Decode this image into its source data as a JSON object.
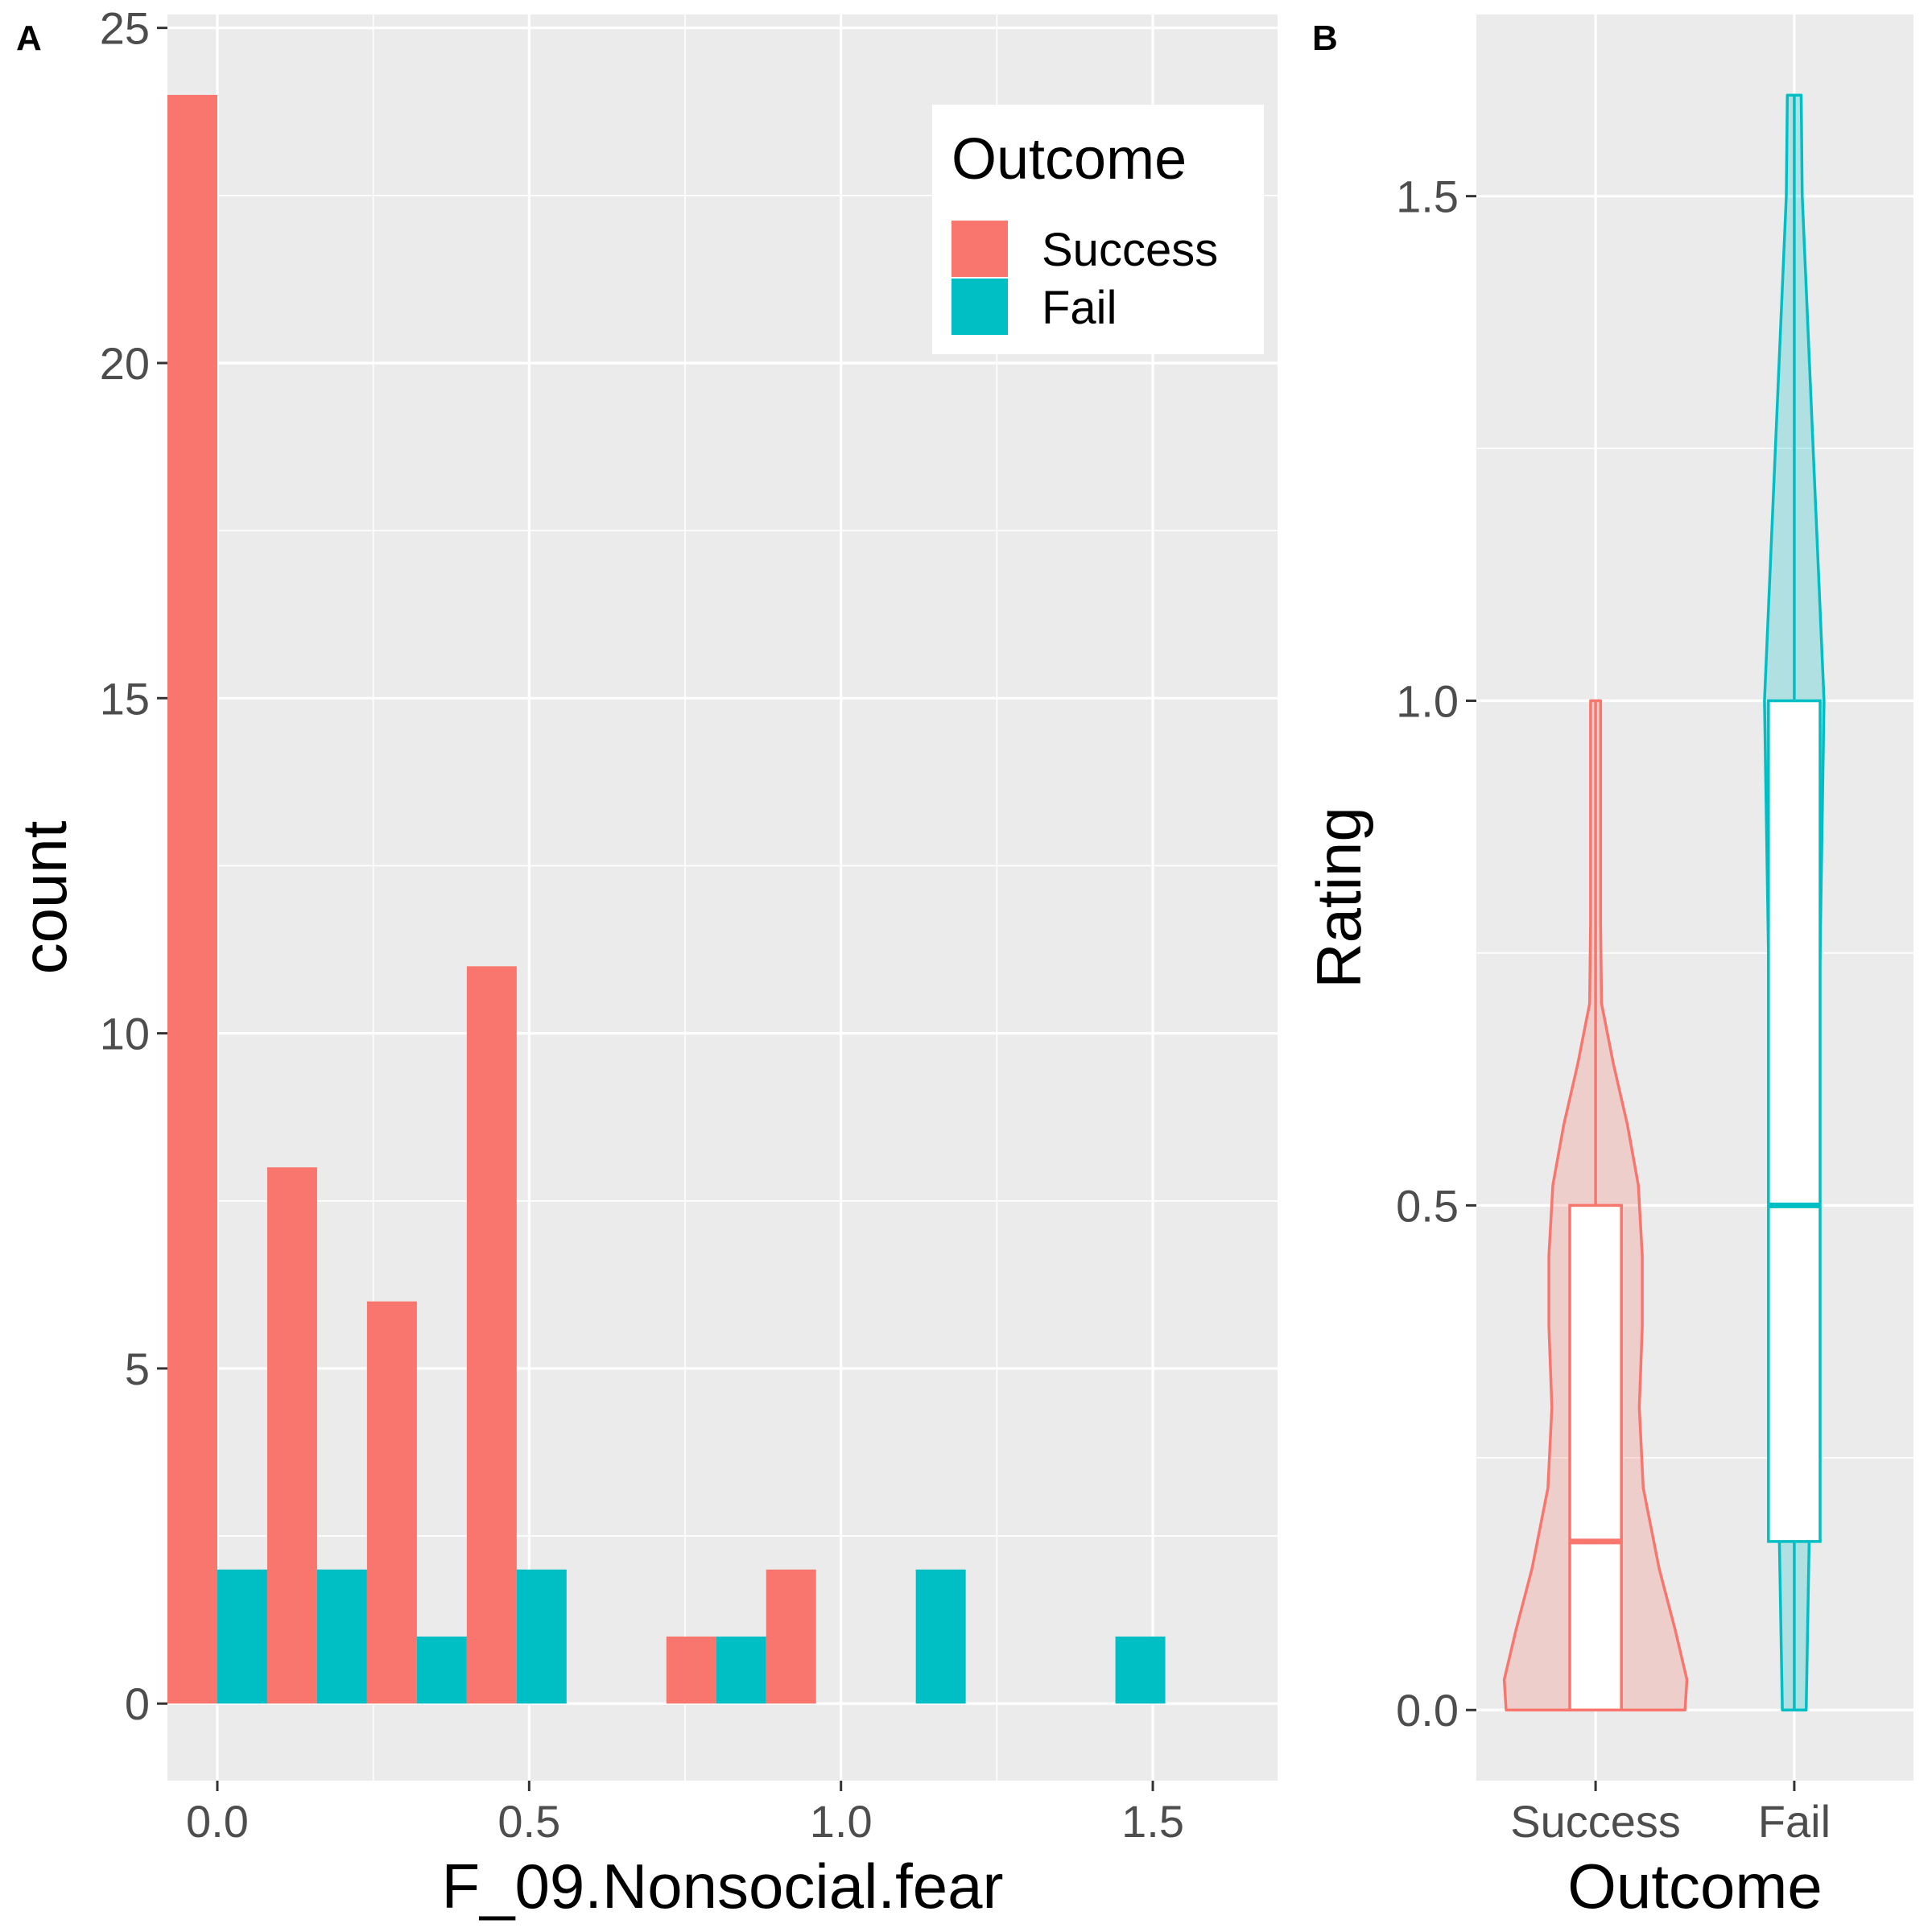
{
  "colors": {
    "success": "#F8766D",
    "fail": "#00BFC4",
    "panel_bg": "#EBEBEB",
    "grid": "#FFFFFF",
    "tick_text": "#4D4D4D"
  },
  "chart_data": [
    {
      "type": "bar",
      "panel_label": "A",
      "xlabel": "F_09.Nonsocial.fear",
      "ylabel": "count",
      "xlim": [
        -0.08,
        1.7
      ],
      "ylim": [
        -1.15,
        25.2
      ],
      "x_ticks": [
        {
          "value": 0.0,
          "label": "0.0"
        },
        {
          "value": 0.5,
          "label": "0.5"
        },
        {
          "value": 1.0,
          "label": "1.0"
        },
        {
          "value": 1.5,
          "label": "1.5"
        }
      ],
      "y_ticks": [
        {
          "value": 0,
          "label": "0"
        },
        {
          "value": 5,
          "label": "5"
        },
        {
          "value": 10,
          "label": "10"
        },
        {
          "value": 15,
          "label": "15"
        },
        {
          "value": 20,
          "label": "20"
        },
        {
          "value": 25,
          "label": "25"
        }
      ],
      "bin_width": 0.16,
      "bins": [
        0.0,
        0.16,
        0.32,
        0.48,
        0.64,
        0.8,
        0.96,
        1.12,
        1.28,
        1.44
      ],
      "legend": {
        "title": "Outcome",
        "position": "top-right"
      },
      "series": [
        {
          "name": "Success",
          "color": "#F8766D",
          "values": [
            24,
            8,
            6,
            11,
            0,
            1,
            2,
            0,
            0,
            0
          ]
        },
        {
          "name": "Fail",
          "color": "#00BFC4",
          "values": [
            2,
            2,
            1,
            2,
            0,
            1,
            0,
            2,
            0,
            1
          ]
        }
      ]
    },
    {
      "type": "violin",
      "panel_label": "B",
      "xlabel": "Outcome",
      "ylabel": "Rating",
      "categories": [
        "Success",
        "Fail"
      ],
      "ylim": [
        -0.07,
        1.68
      ],
      "y_ticks": [
        {
          "value": 0.0,
          "label": "0.0"
        },
        {
          "value": 0.5,
          "label": "0.5"
        },
        {
          "value": 1.0,
          "label": "1.0"
        },
        {
          "value": 1.5,
          "label": "1.5"
        }
      ],
      "groups": [
        {
          "name": "Success",
          "color": "#F8766D",
          "box": {
            "q1": 0.0,
            "median": 0.167,
            "q3": 0.5
          },
          "violin_range": [
            0.0,
            1.0
          ],
          "violin_profile": [
            [
              0.0,
              0.9
            ],
            [
              0.03,
              0.92
            ],
            [
              0.08,
              0.8
            ],
            [
              0.14,
              0.64
            ],
            [
              0.22,
              0.48
            ],
            [
              0.3,
              0.44
            ],
            [
              0.38,
              0.47
            ],
            [
              0.45,
              0.47
            ],
            [
              0.52,
              0.43
            ],
            [
              0.58,
              0.32
            ],
            [
              0.64,
              0.18
            ],
            [
              0.7,
              0.06
            ],
            [
              0.78,
              0.05
            ],
            [
              0.9,
              0.05
            ],
            [
              1.0,
              0.05
            ]
          ]
        },
        {
          "name": "Fail",
          "color": "#00BFC4",
          "box": {
            "q1": 0.167,
            "median": 0.5,
            "q3": 1.0
          },
          "violin_range": [
            0.0,
            1.6
          ],
          "violin_profile": [
            [
              0.0,
              0.12
            ],
            [
              0.167,
              0.15
            ],
            [
              0.5,
              0.22
            ],
            [
              1.0,
              0.3
            ],
            [
              1.5,
              0.08
            ],
            [
              1.6,
              0.07
            ]
          ]
        }
      ]
    }
  ]
}
